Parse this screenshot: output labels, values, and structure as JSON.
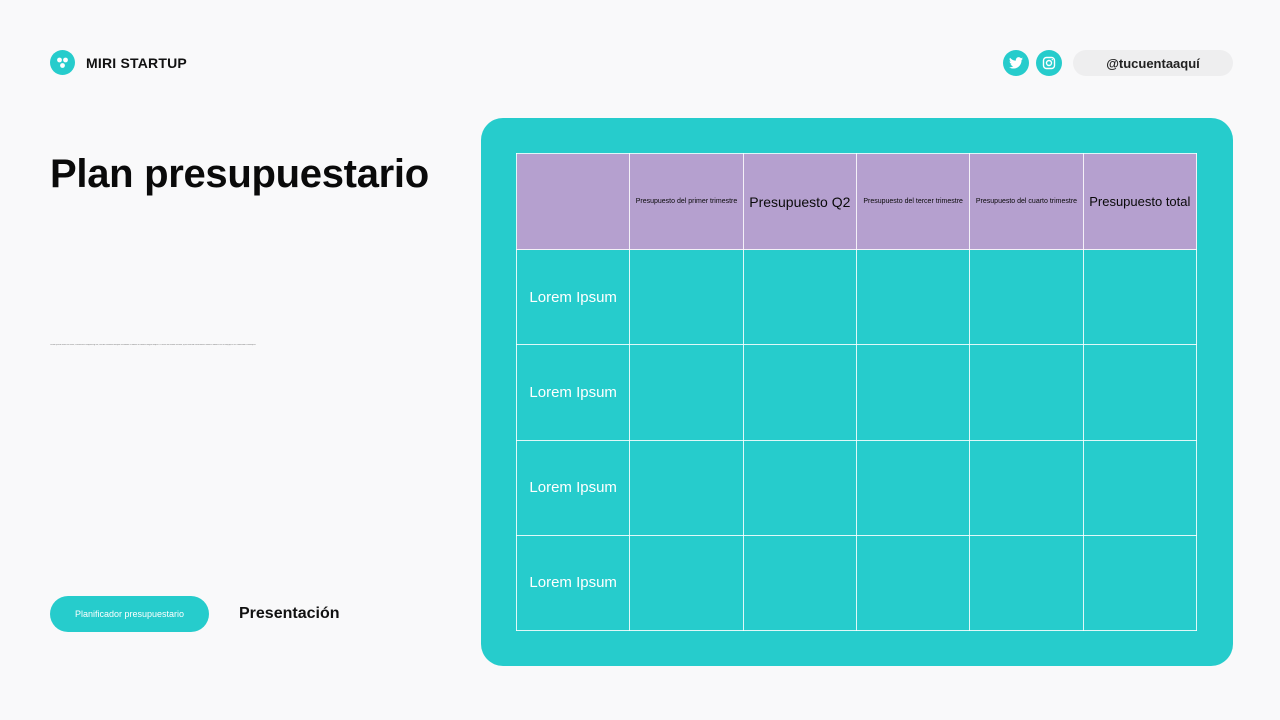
{
  "brand": {
    "name": "MIRI STARTUP",
    "logo_icon": "brand-logo-icon"
  },
  "social": {
    "twitter_icon": "twitter-icon",
    "instagram_icon": "instagram-icon",
    "handle": "@tucuentaaquí"
  },
  "page": {
    "title": "Plan presupuestario",
    "micro_text": "Lorem ipsum dolor sit amet, consectetur adipiscing elit, sed do eiusmod tempor incididunt ut labore et dolore magna aliqua. Ut enim ad minim veniam, quis nostrud exercitation ullamco laboris nisi ut aliquip ex ea commodo consequat."
  },
  "footer": {
    "button_label": "Planificador presupuestario",
    "presentation_label": "Presentación"
  },
  "table": {
    "headers": [
      "",
      "Presupuesto del primer trimestre",
      "Presupuesto Q2",
      "Presupuesto del tercer trimestre",
      "Presupuesto del cuarto trimestre",
      "Presupuesto total"
    ],
    "rows": [
      {
        "label": "Lorem Ipsum",
        "cells": [
          "",
          "",
          "",
          "",
          ""
        ]
      },
      {
        "label": "Lorem Ipsum",
        "cells": [
          "",
          "",
          "",
          "",
          ""
        ]
      },
      {
        "label": "Lorem Ipsum",
        "cells": [
          "",
          "",
          "",
          "",
          ""
        ]
      },
      {
        "label": "Lorem Ipsum",
        "cells": [
          "",
          "",
          "",
          "",
          ""
        ]
      }
    ]
  },
  "colors": {
    "accent": "#26cccc",
    "header": "#b5a0cf",
    "background": "#f9f9fa"
  }
}
